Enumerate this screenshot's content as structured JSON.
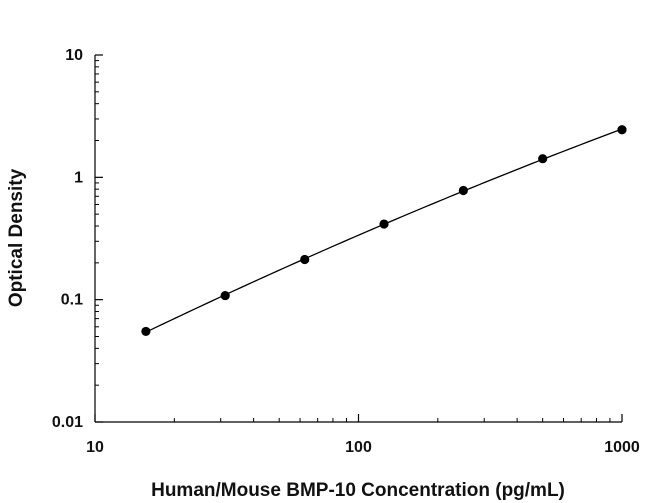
{
  "chart_data": {
    "type": "scatter",
    "title": "",
    "xlabel": "Human/Mouse BMP-10 Concentration (pg/mL)",
    "ylabel": "Optical Density",
    "xscale": "log",
    "yscale": "log",
    "xlim": [
      10,
      1000
    ],
    "ylim": [
      0.01,
      10
    ],
    "x_ticks": [
      "10",
      "100",
      "1000"
    ],
    "y_ticks": [
      "0.01",
      "0.1",
      "1",
      "10"
    ],
    "grid": false,
    "legend": "none",
    "fit_line": true,
    "series": [
      {
        "x": [
          15.6,
          31.2,
          62.5,
          125,
          250,
          500,
          1000
        ],
        "y": [
          0.055,
          0.108,
          0.213,
          0.415,
          0.78,
          1.42,
          2.45
        ]
      }
    ],
    "colors": {
      "marker": "#000000",
      "line": "#000000",
      "axis": "#000000"
    }
  }
}
